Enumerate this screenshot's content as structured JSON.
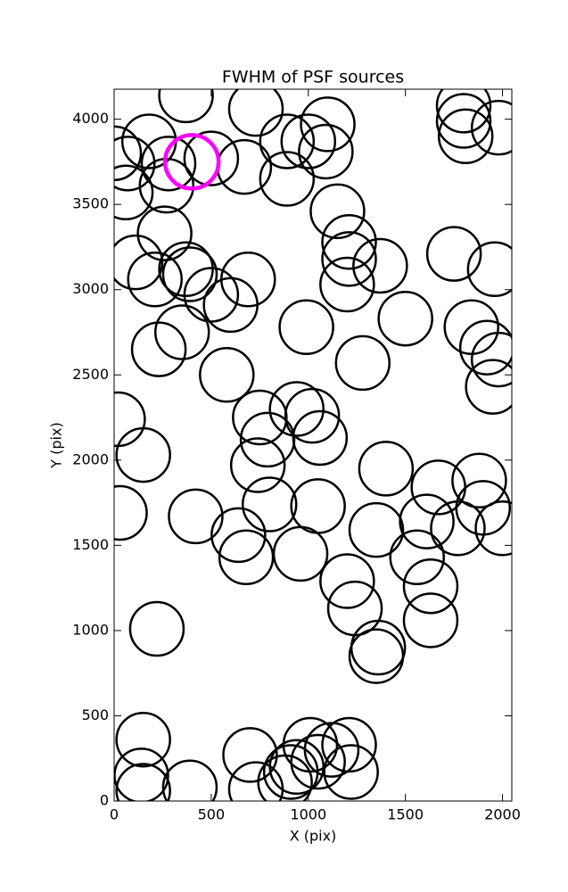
{
  "chart_data": {
    "type": "scatter",
    "title": "FWHM of PSF sources",
    "x_label": "X (pix)",
    "y_label": "Y (pix)",
    "xlim": [
      0,
      2048
    ],
    "ylim": [
      0,
      4176
    ],
    "xticks": [
      0,
      500,
      1000,
      1500,
      2000
    ],
    "yticks": [
      0,
      500,
      1000,
      1500,
      2000,
      2500,
      3000,
      3500,
      4000
    ],
    "marker": "open-circle",
    "series": [
      {
        "color": "#000000",
        "x": [
          370,
          730,
          1800,
          1980,
          0,
          70,
          180,
          280,
          270,
          60,
          500,
          670,
          890,
          1000,
          1100,
          1090,
          890,
          1810,
          1800,
          1150,
          1210,
          1210,
          1370,
          260,
          110,
          210,
          370,
          390,
          500,
          600,
          690,
          1200,
          1750,
          1960,
          990,
          1500,
          1840,
          1920,
          1980,
          1950,
          350,
          230,
          580,
          1280,
          20,
          150,
          750,
          940,
          1020,
          1060,
          790,
          740,
          1400,
          1670,
          1880,
          1900,
          30,
          420,
          800,
          1050,
          1610,
          1770,
          2000,
          640,
          680,
          960,
          1350,
          1560,
          1630,
          1200,
          1240,
          1630,
          1360,
          1350,
          220,
          150,
          140,
          150,
          390,
          700,
          730,
          880,
          910,
          940,
          1010,
          1050,
          1120,
          1210,
          1220
        ],
        "y": [
          4140,
          4060,
          4080,
          3950,
          3800,
          3740,
          3870,
          3740,
          3610,
          3570,
          3770,
          3720,
          3870,
          3870,
          3970,
          3810,
          3650,
          3900,
          3990,
          3460,
          3280,
          3180,
          3140,
          3330,
          3160,
          3060,
          3120,
          3090,
          2970,
          2910,
          3060,
          3030,
          3210,
          3120,
          2780,
          2830,
          2780,
          2660,
          2590,
          2430,
          2750,
          2650,
          2500,
          2570,
          2240,
          2030,
          2250,
          2300,
          2260,
          2130,
          2120,
          1970,
          1950,
          1840,
          1880,
          1720,
          1690,
          1670,
          1740,
          1730,
          1640,
          1600,
          1600,
          1560,
          1430,
          1450,
          1590,
          1430,
          1260,
          1290,
          1130,
          1060,
          900,
          850,
          1010,
          360,
          150,
          60,
          80,
          270,
          70,
          110,
          170,
          200,
          330,
          230,
          300,
          330,
          170
        ]
      },
      {
        "color": "#ff00ff",
        "x": [
          400
        ],
        "y": [
          3750
        ]
      }
    ]
  }
}
